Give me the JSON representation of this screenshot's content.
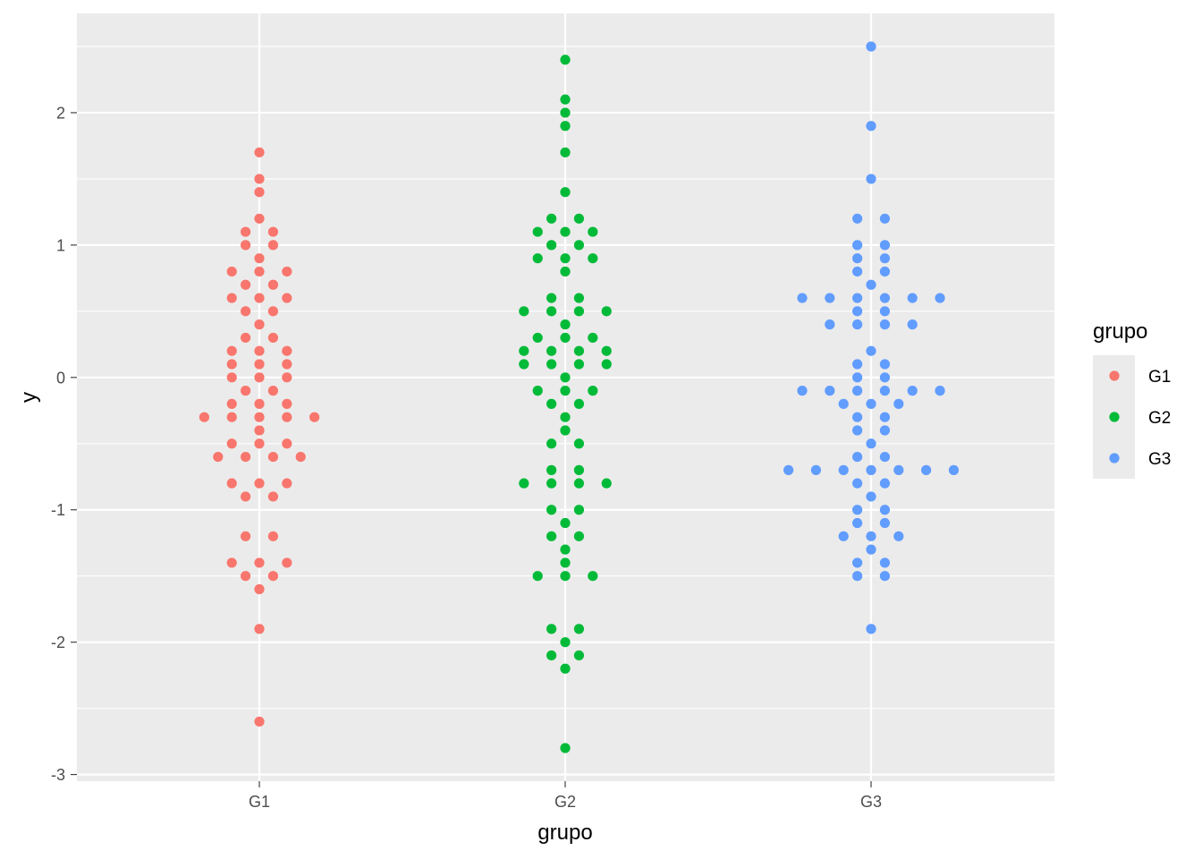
{
  "chart_data": {
    "type": "scatter",
    "subtype": "beeswarm",
    "xlabel": "grupo",
    "ylabel": "y",
    "categories": [
      "G1",
      "G2",
      "G3"
    ],
    "ylim": [
      -3.05,
      2.75
    ],
    "yticks": [
      -3,
      -2,
      -1,
      0,
      1,
      2
    ],
    "ytick_labels": [
      "-3",
      "-2",
      "-1",
      "0",
      "1",
      "2"
    ],
    "grid": true,
    "legend": {
      "title": "grupo",
      "position": "right",
      "entries": [
        "G1",
        "G2",
        "G3"
      ]
    },
    "colors": {
      "G1": "#F8766D",
      "G2": "#00BA38",
      "G3": "#619CFF",
      "panel": "#EBEBEB",
      "grid": "#FFFFFF"
    },
    "series": [
      {
        "name": "G1",
        "values": [
          1.7,
          1.5,
          1.4,
          1.2,
          1.1,
          1.1,
          1.0,
          1.0,
          0.9,
          0.8,
          0.8,
          0.8,
          0.7,
          0.7,
          0.6,
          0.6,
          0.6,
          0.5,
          0.5,
          0.4,
          0.3,
          0.3,
          0.2,
          0.2,
          0.2,
          0.1,
          0.1,
          0.1,
          0.0,
          0.0,
          0.0,
          -0.1,
          -0.1,
          -0.2,
          -0.2,
          -0.2,
          -0.3,
          -0.3,
          -0.3,
          -0.3,
          -0.3,
          -0.4,
          -0.5,
          -0.5,
          -0.5,
          -0.6,
          -0.6,
          -0.6,
          -0.6,
          -0.8,
          -0.8,
          -0.8,
          -0.9,
          -0.9,
          -1.2,
          -1.2,
          -1.4,
          -1.4,
          -1.4,
          -1.5,
          -1.5,
          -1.6,
          -1.9,
          -2.6
        ]
      },
      {
        "name": "G2",
        "values": [
          2.4,
          2.1,
          2.0,
          1.9,
          1.7,
          1.4,
          1.2,
          1.2,
          1.1,
          1.1,
          1.1,
          1.0,
          1.0,
          0.9,
          0.9,
          0.9,
          0.8,
          0.6,
          0.6,
          0.5,
          0.5,
          0.5,
          0.5,
          0.4,
          0.3,
          0.3,
          0.3,
          0.2,
          0.2,
          0.2,
          0.2,
          0.1,
          0.1,
          0.1,
          0.1,
          0.0,
          -0.1,
          -0.1,
          -0.1,
          -0.2,
          -0.2,
          -0.3,
          -0.4,
          -0.5,
          -0.5,
          -0.7,
          -0.7,
          -0.8,
          -0.8,
          -0.8,
          -0.8,
          -1.0,
          -1.0,
          -1.1,
          -1.2,
          -1.2,
          -1.3,
          -1.4,
          -1.5,
          -1.5,
          -1.5,
          -1.9,
          -1.9,
          -2.0,
          -2.1,
          -2.1,
          -2.2,
          -2.8
        ]
      },
      {
        "name": "G3",
        "values": [
          2.5,
          1.9,
          1.5,
          1.2,
          1.2,
          1.0,
          1.0,
          0.9,
          0.9,
          0.8,
          0.8,
          0.7,
          0.6,
          0.6,
          0.6,
          0.6,
          0.6,
          0.6,
          0.5,
          0.5,
          0.4,
          0.4,
          0.4,
          0.4,
          0.2,
          0.1,
          0.1,
          0.0,
          0.0,
          -0.1,
          -0.1,
          -0.1,
          -0.1,
          -0.1,
          -0.1,
          -0.2,
          -0.2,
          -0.2,
          -0.3,
          -0.3,
          -0.4,
          -0.4,
          -0.5,
          -0.6,
          -0.6,
          -0.7,
          -0.7,
          -0.7,
          -0.7,
          -0.7,
          -0.7,
          -0.7,
          -0.8,
          -0.8,
          -0.9,
          -1.0,
          -1.0,
          -1.1,
          -1.1,
          -1.2,
          -1.2,
          -1.2,
          -1.3,
          -1.4,
          -1.4,
          -1.5,
          -1.5,
          -1.9
        ]
      }
    ]
  }
}
